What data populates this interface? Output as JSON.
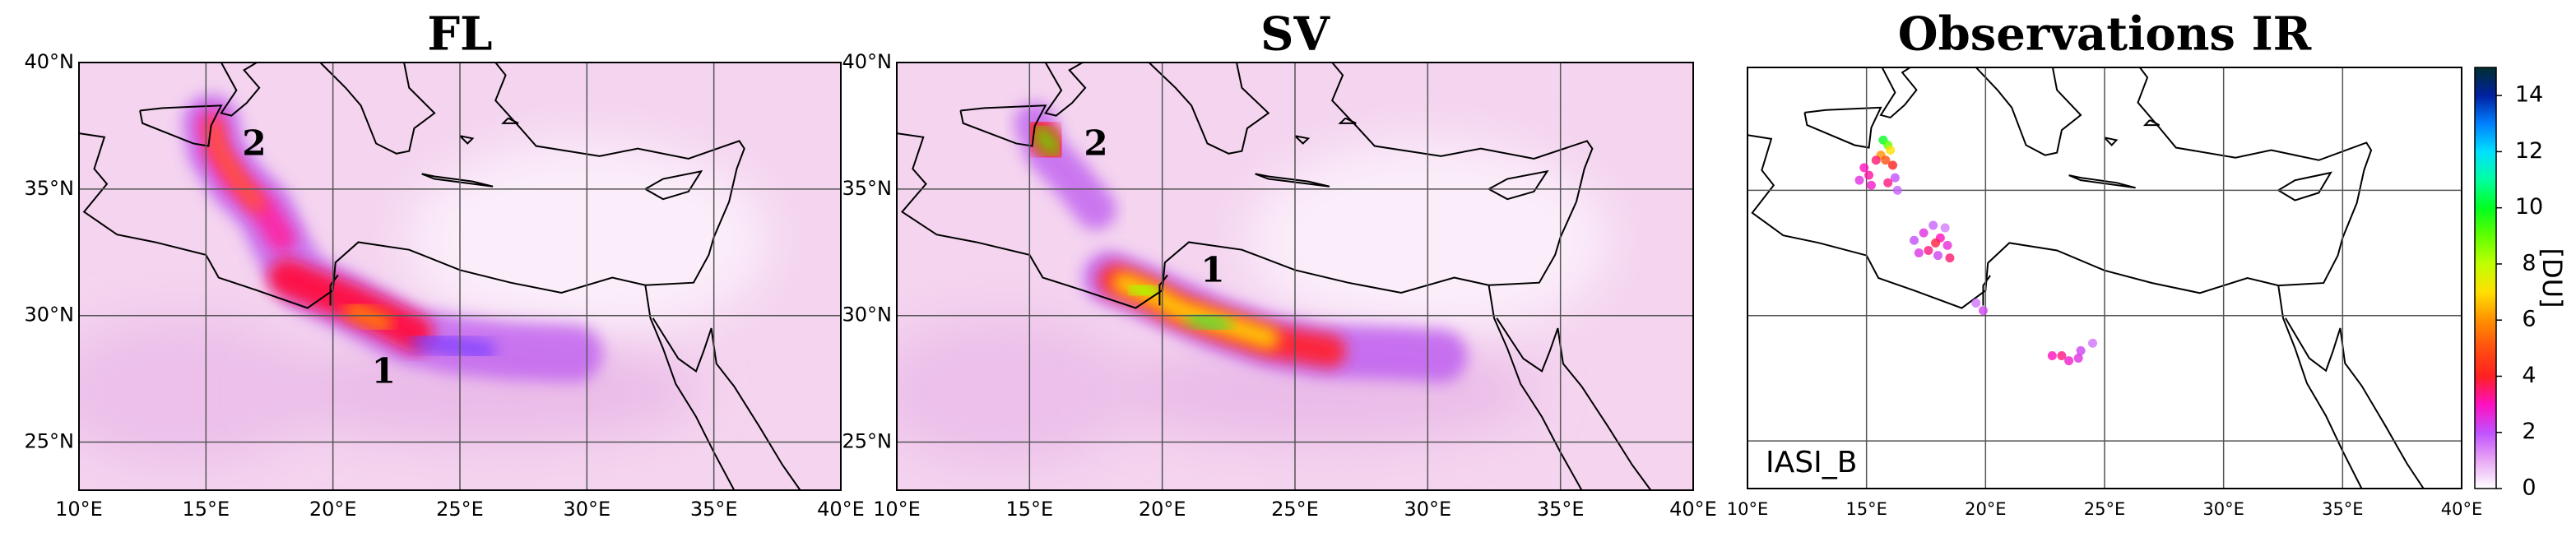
{
  "chart_data": [
    {
      "type": "map",
      "title": "FL",
      "xlim": [
        10,
        40
      ],
      "ylim": [
        23.1,
        40
      ],
      "xticks": [
        {
          "value": 10,
          "label": "10°E"
        },
        {
          "value": 15,
          "label": "15°E"
        },
        {
          "value": 20,
          "label": "20°E"
        },
        {
          "value": 25,
          "label": "25°E"
        },
        {
          "value": 30,
          "label": "30°E"
        },
        {
          "value": 35,
          "label": "35°E"
        },
        {
          "value": 40,
          "label": "40°E"
        }
      ],
      "yticks": [
        {
          "value": 25,
          "label": "25°N"
        },
        {
          "value": 30,
          "label": "30°N"
        },
        {
          "value": 35,
          "label": "35°N"
        },
        {
          "value": 40,
          "label": "40°N"
        }
      ],
      "ytick_labels": true,
      "grid": true,
      "annotations": [
        "2",
        "1"
      ]
    },
    {
      "type": "map",
      "title": "SV",
      "xlim": [
        10,
        40
      ],
      "ylim": [
        23.1,
        40
      ],
      "xticks": [
        {
          "value": 10,
          "label": "10°E"
        },
        {
          "value": 15,
          "label": "15°E"
        },
        {
          "value": 20,
          "label": "20°E"
        },
        {
          "value": 25,
          "label": "25°E"
        },
        {
          "value": 30,
          "label": "30°E"
        },
        {
          "value": 35,
          "label": "35°E"
        },
        {
          "value": 40,
          "label": "40°E"
        }
      ],
      "yticks": [
        {
          "value": 25,
          "label": "25°N"
        },
        {
          "value": 30,
          "label": "30°N"
        },
        {
          "value": 35,
          "label": "35°N"
        },
        {
          "value": 40,
          "label": "40°N"
        }
      ],
      "ytick_labels": true,
      "grid": true,
      "annotations": [
        "2",
        "1"
      ]
    },
    {
      "type": "scatter",
      "title": "Observations IR",
      "instrument": "IASI_B",
      "xlim": [
        10,
        40
      ],
      "ylim": [
        23.1,
        39.9
      ],
      "xticks": [
        {
          "value": 10,
          "label": "10°E"
        },
        {
          "value": 15,
          "label": "15°E"
        },
        {
          "value": 20,
          "label": "20°E"
        },
        {
          "value": 25,
          "label": "25°E"
        },
        {
          "value": 30,
          "label": "30°E"
        },
        {
          "value": 35,
          "label": "35°E"
        },
        {
          "value": 40,
          "label": "40°E"
        }
      ],
      "yticks": [
        25,
        30,
        35
      ],
      "ytick_labels": false,
      "grid": true,
      "x": [
        15.7,
        15.9,
        16.0,
        15.6,
        15.8,
        16.1,
        15.4,
        14.9,
        15.1,
        14.7,
        15.2,
        16.2,
        16.3,
        15.9,
        17.0,
        17.4,
        17.8,
        18.1,
        18.4,
        17.6,
        18.0,
        18.5,
        17.2,
        18.3,
        17.9,
        19.6,
        19.9,
        22.8,
        23.2,
        23.5,
        24.0,
        24.5,
        23.9
      ],
      "y": [
        37.0,
        36.8,
        36.6,
        36.4,
        36.2,
        36.0,
        36.2,
        35.9,
        35.6,
        35.4,
        35.2,
        35.5,
        35.0,
        35.3,
        33.0,
        33.3,
        33.6,
        33.1,
        32.8,
        32.6,
        32.4,
        32.3,
        32.5,
        33.5,
        32.9,
        30.5,
        30.2,
        28.4,
        28.4,
        28.2,
        28.6,
        28.9,
        28.3
      ],
      "values": [
        10,
        9,
        7,
        6,
        5,
        4,
        3.5,
        3,
        3.2,
        2.5,
        2.8,
        2,
        1.8,
        3.4,
        2,
        2.5,
        1.8,
        3,
        2.6,
        3.4,
        2.2,
        3.5,
        2.4,
        1.5,
        3.8,
        1.6,
        2.2,
        3,
        3.4,
        2.8,
        2.2,
        1.6,
        2.5
      ],
      "colorbar": {
        "label": "[DU]",
        "lim": [
          0,
          15
        ],
        "ticks": [
          0,
          2,
          4,
          6,
          8,
          10,
          12,
          14
        ]
      }
    }
  ]
}
